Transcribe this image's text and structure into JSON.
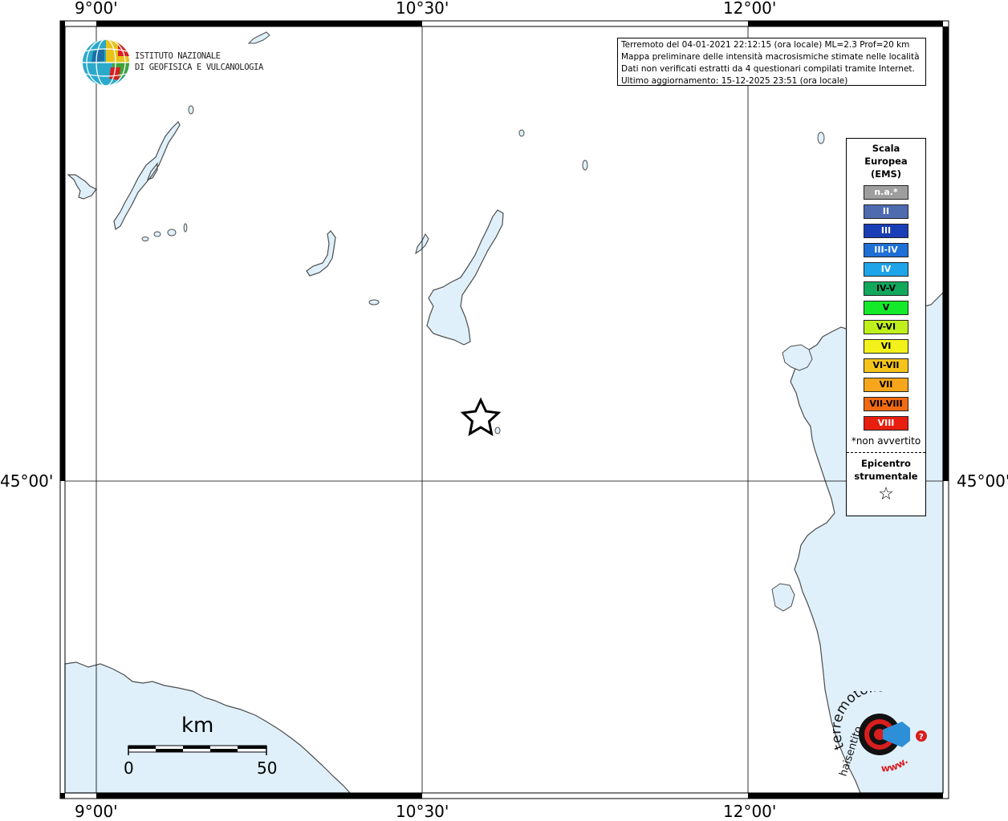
{
  "map": {
    "grid_labels_top": [
      "9°00'",
      "10°30'",
      "12°00'"
    ],
    "grid_labels_bottom": [
      "9°00'",
      "10°30'",
      "12°00'"
    ],
    "grid_labels_left": [
      "45°00'"
    ],
    "grid_labels_right": [
      "45°00'"
    ],
    "water_color": "#dff0fb",
    "coast_color": "#4d4d4d"
  },
  "info": {
    "line1": "Terremoto del 04-01-2021 22:12:15 (ora locale) ML=2.3 Prof=20 km",
    "line2": "Mappa preliminare delle intensità macrosismiche stimate nelle località",
    "line3": "Dati non verificati estratti da 4 questionari compilati tramite Internet.",
    "line4": "Ultimo aggiornamento: 15-12-2025 23:51 (ora locale)"
  },
  "logo": {
    "line1": "ISTITUTO NAZIONALE",
    "line2": "DI GEOFISICA E VULCANOLOGIA"
  },
  "legend": {
    "title1": "Scala",
    "title2": "Europea",
    "title3": "(EMS)",
    "items": [
      {
        "label": "n.a.*",
        "color": "#9e9e9e",
        "text_color": "#ffffff"
      },
      {
        "label": "II",
        "color": "#4f6bb0",
        "text_color": "#ffffff"
      },
      {
        "label": "III",
        "color": "#1a3eb5",
        "text_color": "#ffffff"
      },
      {
        "label": "III-IV",
        "color": "#1e6fd6",
        "text_color": "#ffffff"
      },
      {
        "label": "IV",
        "color": "#1ea4e8",
        "text_color": "#ffffff"
      },
      {
        "label": "IV-V",
        "color": "#11a85c",
        "text_color": "#000000"
      },
      {
        "label": "V",
        "color": "#14ea2a",
        "text_color": "#000000"
      },
      {
        "label": "V-VI",
        "color": "#bff01c",
        "text_color": "#000000"
      },
      {
        "label": "VI",
        "color": "#f2f21a",
        "text_color": "#000000"
      },
      {
        "label": "VI-VII",
        "color": "#f5c41b",
        "text_color": "#000000"
      },
      {
        "label": "VII",
        "color": "#f7a61b",
        "text_color": "#000000"
      },
      {
        "label": "VII-VIII",
        "color": "#f06a12",
        "text_color": "#000000"
      },
      {
        "label": "VIII",
        "color": "#e81e0f",
        "text_color": "#ffffff"
      }
    ],
    "note": "*non avvertito",
    "epicenter_line1": "Epicentro",
    "epicenter_line2": "strumentale",
    "epicenter_symbol": "☆"
  },
  "scalebar": {
    "unit": "km",
    "start": "0",
    "end": "50"
  },
  "hsc_logo": {
    "text_top": "terremoto.it",
    "text_side": "haisentito",
    "text_bottom": "www."
  },
  "epicenter": {
    "symbol": "star-icon"
  }
}
